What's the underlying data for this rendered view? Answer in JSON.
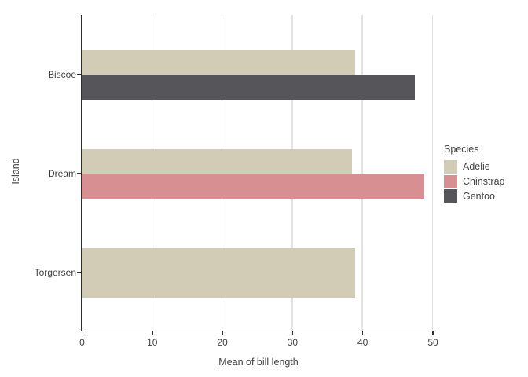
{
  "chart_data": {
    "type": "bar",
    "orientation": "horizontal",
    "title": "",
    "xlabel": "Mean of bill length",
    "ylabel": "Island",
    "categories": [
      "Biscoe",
      "Dream",
      "Torgersen"
    ],
    "series": [
      {
        "name": "Adelie",
        "color": "#d2cbb6",
        "values": [
          38.98,
          38.52,
          38.95
        ]
      },
      {
        "name": "Chinstrap",
        "color": "#d88f91",
        "values": [
          null,
          48.83,
          null
        ]
      },
      {
        "name": "Gentoo",
        "color": "#56555a",
        "values": [
          47.5,
          null,
          null
        ]
      }
    ],
    "x_ticks": [
      0,
      10,
      20,
      30,
      40,
      50
    ],
    "xlim": [
      0,
      50
    ],
    "grid": "vertical-major-only",
    "legend": {
      "title": "Species",
      "position": "right",
      "entries": [
        "Adelie",
        "Chinstrap",
        "Gentoo"
      ]
    },
    "colors": {
      "background": "#ffffff",
      "axis_line": "#2e2e2e",
      "grid_line": "#e2e2e2",
      "text": "#404040"
    }
  }
}
